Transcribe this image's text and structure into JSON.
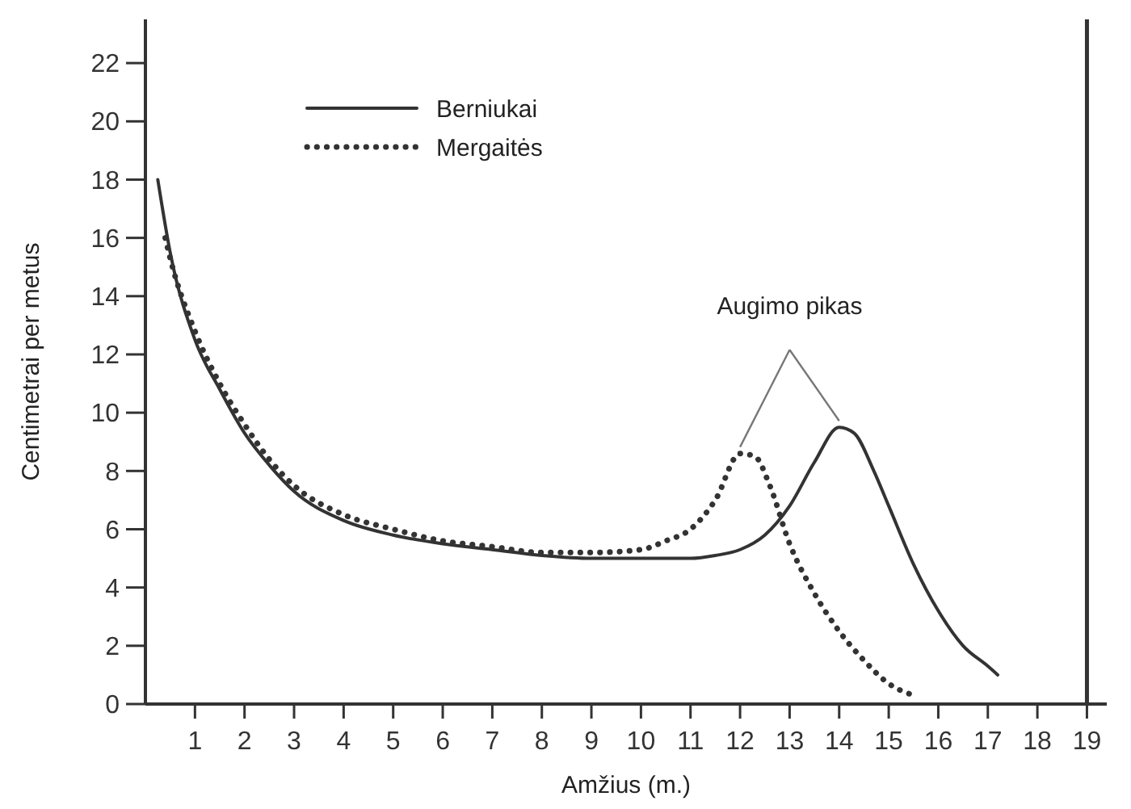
{
  "chart_data": {
    "type": "line",
    "xlabel": "Amžius (m.)",
    "ylabel": "Centimetrai per metus",
    "xlim": [
      0,
      19.4
    ],
    "ylim": [
      0,
      23.5
    ],
    "xticks": [
      1,
      2,
      3,
      4,
      5,
      6,
      7,
      8,
      9,
      10,
      11,
      12,
      13,
      14,
      15,
      16,
      17,
      18,
      19
    ],
    "yticks": [
      0,
      2,
      4,
      6,
      8,
      10,
      12,
      14,
      16,
      18,
      20,
      22
    ],
    "grid": false,
    "legend": "top left",
    "marker": "none",
    "series": [
      {
        "name": "Berniukai",
        "color": "#333333",
        "line_style": "solid",
        "x": [
          0.25,
          0.5,
          1,
          1.5,
          2,
          2.5,
          3,
          4,
          5,
          6,
          7,
          8,
          9,
          10,
          11,
          11.5,
          12,
          12.5,
          13,
          13.5,
          14,
          14.3,
          14.7,
          15,
          15.5,
          16,
          16.5,
          17,
          17.2
        ],
        "values": [
          18,
          15.5,
          12.5,
          10.8,
          9.3,
          8.2,
          7.3,
          6.3,
          5.8,
          5.5,
          5.3,
          5.1,
          5.0,
          5.0,
          5.0,
          5.1,
          5.3,
          5.8,
          6.8,
          8.3,
          9.5,
          9.3,
          8.0,
          6.8,
          4.8,
          3.2,
          2.0,
          1.3,
          1.0
        ]
      },
      {
        "name": "Mergaitės",
        "color": "#333333",
        "line_style": "dotted",
        "x": [
          0.4,
          0.5,
          1,
          1.5,
          2,
          2.5,
          3,
          4,
          5,
          6,
          7,
          8,
          9,
          10,
          10.5,
          11,
          11.5,
          12,
          12.3,
          12.6,
          13,
          13.5,
          14,
          14.5,
          15,
          15.5
        ],
        "values": [
          16,
          15.3,
          12.8,
          11,
          9.6,
          8.4,
          7.5,
          6.5,
          6.0,
          5.6,
          5.4,
          5.2,
          5.2,
          5.3,
          5.6,
          6.0,
          7.0,
          8.6,
          8.5,
          7.5,
          5.5,
          3.8,
          2.5,
          1.5,
          0.7,
          0.3
        ]
      }
    ],
    "ref_lines": [
      {
        "axis": "x",
        "value": 19,
        "color": "#333333"
      }
    ],
    "annotations": [
      {
        "text": "Augimo pikas",
        "x": 14,
        "y": 9.5
      }
    ]
  }
}
